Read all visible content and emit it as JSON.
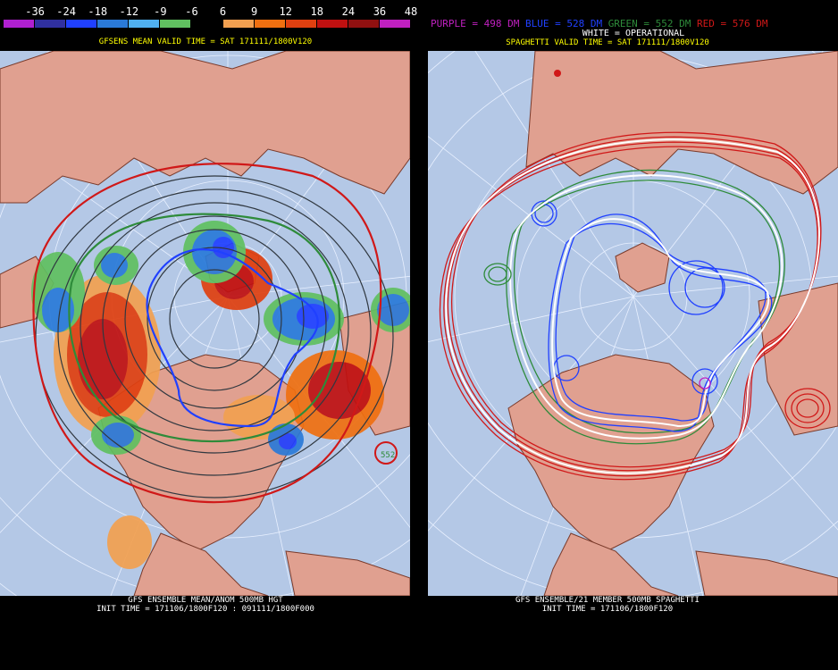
{
  "legend": {
    "ticks": [
      "-36",
      "-24",
      "-18",
      "-12",
      "-9",
      "-6",
      "6",
      "9",
      "12",
      "18",
      "24",
      "36",
      "48"
    ],
    "colors": [
      "#b020d0",
      "#3030a0",
      "#2040ff",
      "#2a7ad8",
      "#50b0f0",
      "#60c060",
      "#000000",
      "#f2a050",
      "#f07010",
      "#e04010",
      "#c01010",
      "#901010",
      "#c020c0"
    ]
  },
  "left_panel": {
    "title": "GFSENS MEAN VALID TIME = SAT 171111/1800V120",
    "caption_line1": "GFS ENSEMBLE MEAN/ANOM 500MB HGT",
    "caption_line2": "INIT TIME = 171106/1800F120 : 091111/1800F000",
    "label_552": "552"
  },
  "right_panel": {
    "top_legend": {
      "purple": "PURPLE = 498 DM",
      "blue": "BLUE = 528 DM",
      "green": "GREEN = 552 DM",
      "red": "RED = 576 DM"
    },
    "legend_colors": {
      "purple": "#c020c0",
      "blue": "#2040ff",
      "green": "#2e8b3a",
      "red": "#d01818"
    },
    "title": "SPAGHETTI VALID TIME = SAT 171111/1800V120",
    "subtitle": "WHITE = OPERATIONAL",
    "caption_line1": "GFS ENSEMBLE/21 MEMBER 500MB SPAGHETTI",
    "caption_line2": "INIT TIME = 171106/1800F120"
  },
  "map_colors": {
    "ocean": "#b4c8e6",
    "land": "#e0a090",
    "border": "#7a3a2a",
    "grid": "#e8f0ff"
  }
}
